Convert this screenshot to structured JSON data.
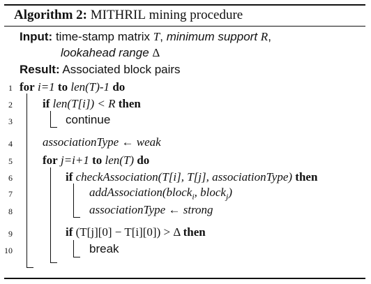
{
  "algorithm": {
    "label": "Algorithm 2:",
    "name": "MITHRIL",
    "title_rest": "mining procedure"
  },
  "input": {
    "label": "Input:",
    "line1_prefix": "time-stamp matrix",
    "T": "T",
    "line1_sep": ",",
    "min_support": "minimum support",
    "R": "R",
    "comma": ",",
    "line2_text": "lookahead range",
    "delta": "Δ"
  },
  "result": {
    "label": "Result:",
    "text": "Associated block pairs"
  },
  "lines": [
    {
      "num": "1",
      "kw1": "for",
      "expr": "i=1",
      "kw2": "to",
      "expr2": "len(T)-1",
      "kw3": "do"
    },
    {
      "num": "2",
      "kw1": "if",
      "expr": "len(T[i]) < R",
      "kw2": "then"
    },
    {
      "num": "3",
      "text": "continue"
    },
    {
      "num": "4",
      "expr": "associationType ← weak"
    },
    {
      "num": "5",
      "kw1": "for",
      "expr": "j=i+1",
      "kw2": "to",
      "expr2": "len(T)",
      "kw3": "do"
    },
    {
      "num": "6",
      "kw1": "if",
      "expr": "checkAssociation(T[i], T[j], associationType)",
      "kw2": "then"
    },
    {
      "num": "7",
      "expr_a": "addAssociation(block",
      "sub_i": "i",
      "expr_b": ", block",
      "sub_j": "j",
      "expr_c": ")"
    },
    {
      "num": "8",
      "expr": "associationType ← strong"
    },
    {
      "num": "9",
      "kw1": "if",
      "expr": "(T[j][0] − T[i][0]) > Δ",
      "kw2": "then"
    },
    {
      "num": "10",
      "text": "break"
    }
  ]
}
